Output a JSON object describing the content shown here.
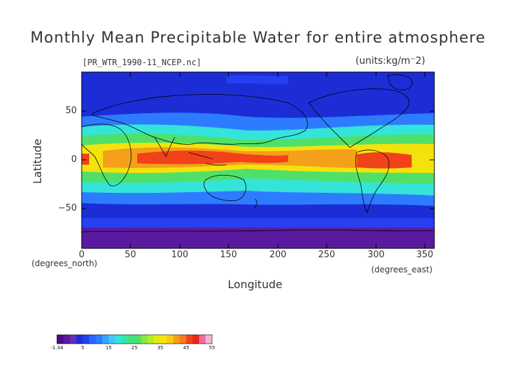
{
  "title": "Monthly Mean Precipitable Water for entire atmosphere",
  "subtitle": "[PR_WTR_1990-11_NCEP.nc]",
  "units": "(units:kg/m⁻2)",
  "axes": {
    "y_label": "Latitude",
    "x_label": "Longitude",
    "y_unit": "(degrees_north)",
    "x_unit": "(degrees_east)",
    "y_ticks": [
      "50",
      "0",
      "−50"
    ],
    "x_ticks": [
      "0",
      "50",
      "100",
      "150",
      "200",
      "250",
      "300",
      "350"
    ]
  },
  "map": {
    "lon_range": [
      0,
      360
    ],
    "lat_range": [
      -90,
      90
    ],
    "colors": {
      "very_low": "#5a1aa0",
      "low": "#1c2dd6",
      "low_mid": "#2d7cff",
      "mid": "#34e4d8",
      "mid_high": "#4fe06a",
      "high": "#f4e20c",
      "very_high": "#f4a01a",
      "max": "#f2421a",
      "land_outline": "#000000",
      "frame": "#000000"
    }
  },
  "colorbar": {
    "labels": [
      "-1.34",
      "5",
      "15",
      "25",
      "35",
      "45",
      "55"
    ],
    "colors": [
      "#4b0a8c",
      "#5a1aa0",
      "#6a2cc0",
      "#1c2dd6",
      "#2440f0",
      "#2a66ff",
      "#2d7cff",
      "#35a6ff",
      "#3fc6ff",
      "#34e4d8",
      "#34e6a8",
      "#40e07a",
      "#4fe06a",
      "#86e844",
      "#b6ec22",
      "#e2ec10",
      "#f4e20c",
      "#f7cb14",
      "#f4a01a",
      "#f47c1e",
      "#f2421a",
      "#e8281a",
      "#f06aa0",
      "#f0b6d2"
    ]
  }
}
